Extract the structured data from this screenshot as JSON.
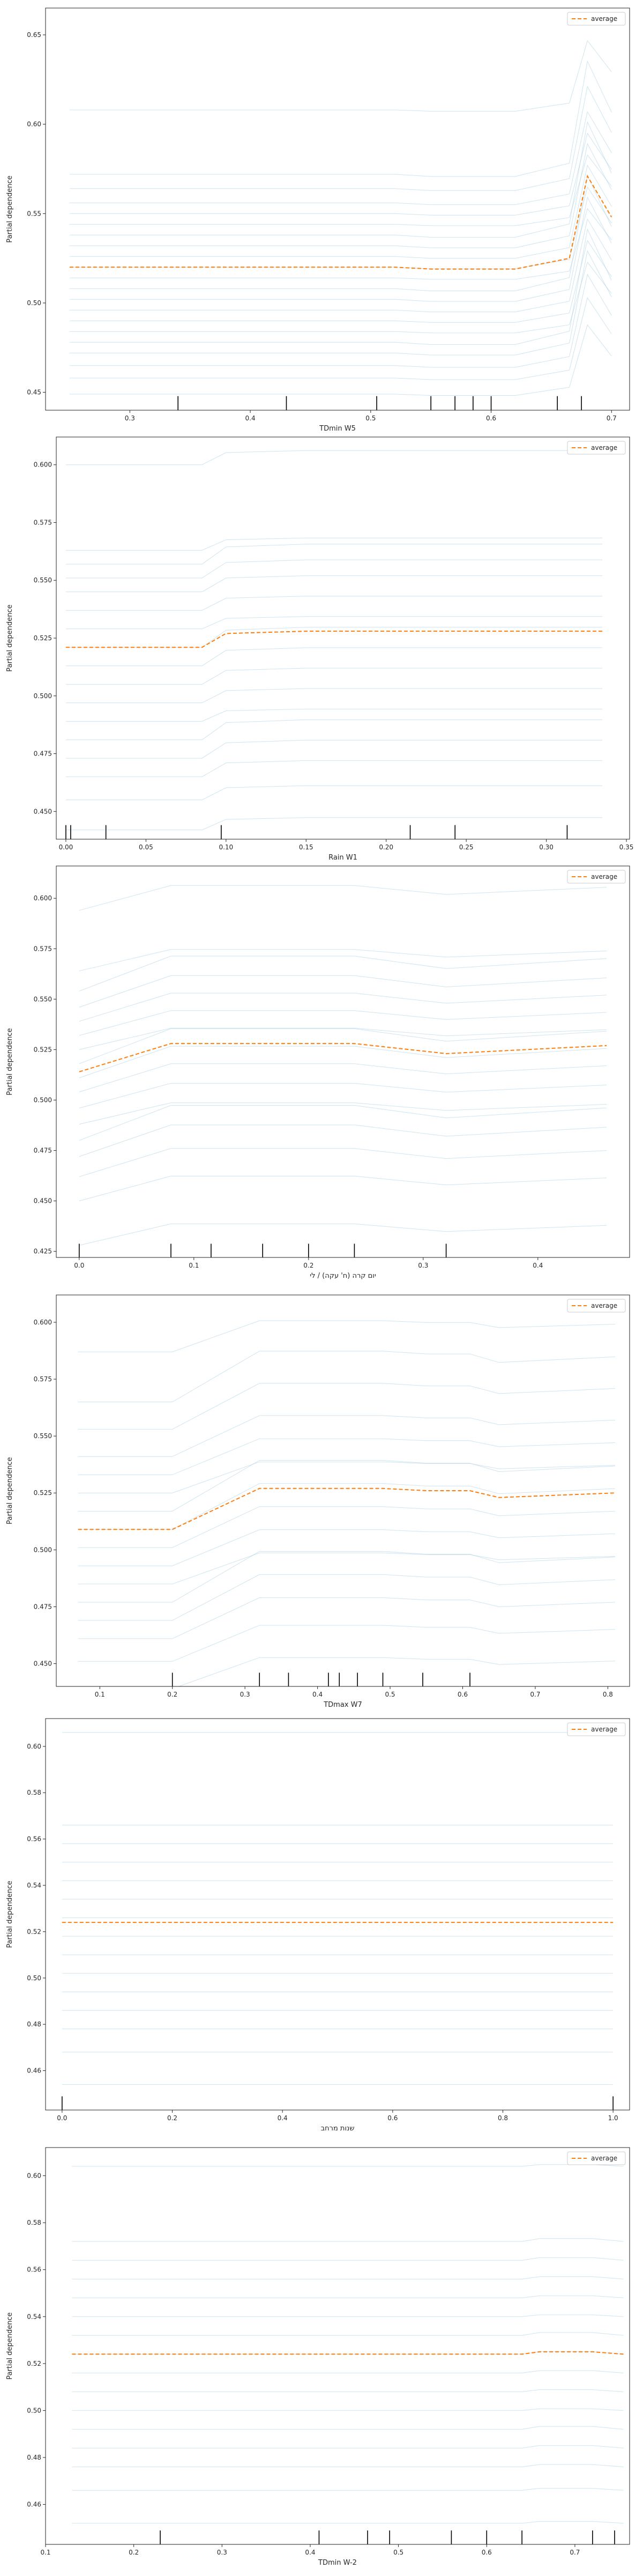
{
  "chart_data": [
    {
      "type": "line",
      "xlabel": "TDmin W5",
      "ylabel": "Partial dependence",
      "xlim": [
        0.23,
        0.715
      ],
      "ylim": [
        0.44,
        0.665
      ],
      "xticks": [
        0.3,
        0.4,
        0.5,
        0.6,
        0.7
      ],
      "xtick_labels": [
        "0.3",
        "0.4",
        "0.5",
        "0.6",
        "0.7"
      ],
      "yticks": [
        0.45,
        0.5,
        0.55,
        0.6,
        0.65
      ],
      "ytick_labels": [
        "0.45",
        "0.50",
        "0.55",
        "0.60",
        "0.65"
      ],
      "legend": {
        "label": "average",
        "position": "top-right"
      },
      "x": [
        0.25,
        0.52,
        0.55,
        0.62,
        0.665,
        0.68,
        0.7
      ],
      "average": [
        0.52,
        0.52,
        0.519,
        0.519,
        0.525,
        0.571,
        0.548
      ],
      "ice_profile": {
        "base": [
          0,
          0,
          0,
          0,
          0.005,
          0.05,
          0.03
        ],
        "jump": [
          0,
          0,
          0,
          0,
          0,
          0,
          0
        ]
      },
      "ice_offsets": [
        -0.071,
        -0.062,
        -0.055,
        -0.048,
        -0.042,
        -0.036,
        -0.03,
        -0.024,
        -0.018,
        -0.012,
        -0.006,
        0.0,
        0.006,
        0.012,
        0.018,
        0.024,
        0.03,
        0.036,
        0.044,
        0.052,
        0.088
      ],
      "rug": [
        0.34,
        0.43,
        0.505,
        0.55,
        0.57,
        0.585,
        0.6,
        0.655,
        0.675
      ]
    },
    {
      "type": "line",
      "xlabel": "Rain W1",
      "ylabel": "Partial dependence",
      "xlim": [
        -0.006,
        0.352
      ],
      "ylim": [
        0.438,
        0.612
      ],
      "xticks": [
        0.0,
        0.05,
        0.1,
        0.15,
        0.2,
        0.25,
        0.3,
        0.35
      ],
      "xtick_labels": [
        "0.00",
        "0.05",
        "0.10",
        "0.15",
        "0.20",
        "0.25",
        "0.30",
        "0.35"
      ],
      "yticks": [
        0.45,
        0.475,
        0.5,
        0.525,
        0.55,
        0.575,
        0.6
      ],
      "ytick_labels": [
        "0.450",
        "0.475",
        "0.500",
        "0.525",
        "0.550",
        "0.575",
        "0.600"
      ],
      "legend": {
        "label": "average",
        "position": "top-right"
      },
      "x": [
        0.0,
        0.085,
        0.1,
        0.15,
        0.25,
        0.335
      ],
      "average": [
        0.521,
        0.521,
        0.527,
        0.528,
        0.528,
        0.528
      ],
      "ice_profile": {
        "base": [
          0,
          0,
          0.006,
          0.007,
          0.007,
          0.007
        ],
        "jump": [
          0,
          0,
          0,
          0,
          0,
          0
        ]
      },
      "ice_offsets": [
        -0.079,
        -0.066,
        -0.056,
        -0.048,
        -0.04,
        -0.032,
        -0.024,
        -0.016,
        -0.008,
        0.0,
        0.008,
        0.016,
        0.024,
        0.03,
        0.036,
        0.042,
        0.079
      ],
      "rug": [
        0.0,
        0.003,
        0.025,
        0.097,
        0.215,
        0.243,
        0.313
      ]
    },
    {
      "type": "line",
      "xlabel": "יום קרה (ח' עקה) / לי",
      "ylabel": "Partial dependence",
      "xlim": [
        -0.02,
        0.48
      ],
      "ylim": [
        0.422,
        0.616
      ],
      "xticks": [
        0.0,
        0.1,
        0.2,
        0.3,
        0.4
      ],
      "xtick_labels": [
        "0.0",
        "0.1",
        "0.2",
        "0.3",
        "0.4"
      ],
      "yticks": [
        0.425,
        0.45,
        0.475,
        0.5,
        0.525,
        0.55,
        0.575,
        0.6
      ],
      "ytick_labels": [
        "0.425",
        "0.450",
        "0.475",
        "0.500",
        "0.525",
        "0.550",
        "0.575",
        "0.600"
      ],
      "legend": {
        "label": "average",
        "position": "top-right"
      },
      "x": [
        0.0,
        0.08,
        0.16,
        0.24,
        0.32,
        0.46
      ],
      "average": [
        0.514,
        0.528,
        0.528,
        0.528,
        0.523,
        0.527
      ],
      "ice_profile": {
        "base": [
          -0.014,
          0,
          0,
          0,
          -0.005,
          -0.001
        ],
        "jump": [
          0,
          0,
          0,
          0,
          0,
          0
        ]
      },
      "ice_offsets": [
        -0.086,
        -0.064,
        -0.052,
        -0.042,
        -0.034,
        -0.026,
        -0.018,
        -0.01,
        -0.003,
        0.004,
        0.011,
        0.018,
        0.025,
        0.032,
        0.04,
        0.05,
        0.08
      ],
      "rug": [
        0.0,
        0.08,
        0.115,
        0.16,
        0.2,
        0.24,
        0.32
      ]
    },
    {
      "type": "line",
      "xlabel": "TDmax W7",
      "ylabel": "Partial dependence",
      "xlim": [
        0.04,
        0.83
      ],
      "ylim": [
        0.44,
        0.612
      ],
      "xticks": [
        0.1,
        0.2,
        0.3,
        0.4,
        0.5,
        0.6,
        0.7,
        0.8
      ],
      "xtick_labels": [
        "0.1",
        "0.2",
        "0.3",
        "0.4",
        "0.5",
        "0.6",
        "0.7",
        "0.8"
      ],
      "yticks": [
        0.45,
        0.475,
        0.5,
        0.525,
        0.55,
        0.575,
        0.6
      ],
      "ytick_labels": [
        "0.450",
        "0.475",
        "0.500",
        "0.525",
        "0.550",
        "0.575",
        "0.600"
      ],
      "legend": {
        "label": "average",
        "position": "top-right"
      },
      "x": [
        0.07,
        0.2,
        0.32,
        0.49,
        0.55,
        0.61,
        0.65,
        0.81
      ],
      "average": [
        0.509,
        0.509,
        0.527,
        0.527,
        0.526,
        0.526,
        0.523,
        0.525
      ],
      "ice_profile": {
        "base": [
          -0.018,
          -0.018,
          0,
          0,
          -0.001,
          -0.001,
          -0.004,
          -0.002
        ],
        "jump": [
          0,
          0,
          0,
          0,
          0,
          0,
          0,
          0
        ]
      },
      "ice_offsets": [
        -0.07,
        -0.058,
        -0.048,
        -0.04,
        -0.032,
        -0.024,
        -0.016,
        -0.008,
        0.0,
        0.008,
        0.016,
        0.024,
        0.032,
        0.044,
        0.056,
        0.078
      ],
      "rug": [
        0.2,
        0.32,
        0.36,
        0.415,
        0.43,
        0.455,
        0.49,
        0.545,
        0.61
      ]
    },
    {
      "type": "line",
      "xlabel": "שנות מרחב",
      "ylabel": "Partial dependence",
      "xlim": [
        -0.03,
        1.03
      ],
      "ylim": [
        0.443,
        0.612
      ],
      "xticks": [
        0.0,
        0.2,
        0.4,
        0.6,
        0.8,
        1.0
      ],
      "xtick_labels": [
        "0.0",
        "0.2",
        "0.4",
        "0.6",
        "0.8",
        "1.0"
      ],
      "yticks": [
        0.46,
        0.48,
        0.5,
        0.52,
        0.54,
        0.56,
        0.58,
        0.6
      ],
      "ytick_labels": [
        "0.46",
        "0.48",
        "0.50",
        "0.52",
        "0.54",
        "0.56",
        "0.58",
        "0.60"
      ],
      "legend": {
        "label": "average",
        "position": "top-right"
      },
      "x": [
        0.0,
        1.0
      ],
      "average": [
        0.524,
        0.524
      ],
      "ice_profile": {
        "base": [
          0,
          0
        ],
        "jump": [
          0,
          0
        ]
      },
      "ice_offsets": [
        -0.07,
        -0.056,
        -0.046,
        -0.038,
        -0.03,
        -0.022,
        -0.014,
        -0.006,
        0.002,
        0.01,
        0.018,
        0.026,
        0.034,
        0.042,
        0.082
      ],
      "rug": [
        0.0,
        1.0
      ]
    },
    {
      "type": "line",
      "xlabel": "TDmin W-2",
      "ylabel": "Partial dependence",
      "xlim": [
        0.1,
        0.762
      ],
      "ylim": [
        0.443,
        0.612
      ],
      "xticks": [
        0.1,
        0.2,
        0.3,
        0.4,
        0.5,
        0.6,
        0.7
      ],
      "xtick_labels": [
        "0.1",
        "0.2",
        "0.3",
        "0.4",
        "0.5",
        "0.6",
        "0.7"
      ],
      "yticks": [
        0.46,
        0.48,
        0.5,
        0.52,
        0.54,
        0.56,
        0.58,
        0.6
      ],
      "ytick_labels": [
        "0.46",
        "0.48",
        "0.50",
        "0.52",
        "0.54",
        "0.56",
        "0.58",
        "0.60"
      ],
      "legend": {
        "label": "average",
        "position": "top-right"
      },
      "x": [
        0.13,
        0.64,
        0.66,
        0.72,
        0.755
      ],
      "average": [
        0.524,
        0.524,
        0.525,
        0.525,
        0.524
      ],
      "ice_profile": {
        "base": [
          0,
          0,
          0.001,
          0.001,
          0
        ],
        "jump": [
          0,
          0,
          0,
          0,
          0
        ]
      },
      "ice_offsets": [
        -0.072,
        -0.058,
        -0.048,
        -0.04,
        -0.032,
        -0.024,
        -0.016,
        -0.008,
        0.0,
        0.008,
        0.016,
        0.024,
        0.032,
        0.04,
        0.048,
        0.08
      ],
      "rug": [
        0.23,
        0.41,
        0.465,
        0.49,
        0.56,
        0.6,
        0.64,
        0.72,
        0.745
      ]
    }
  ]
}
